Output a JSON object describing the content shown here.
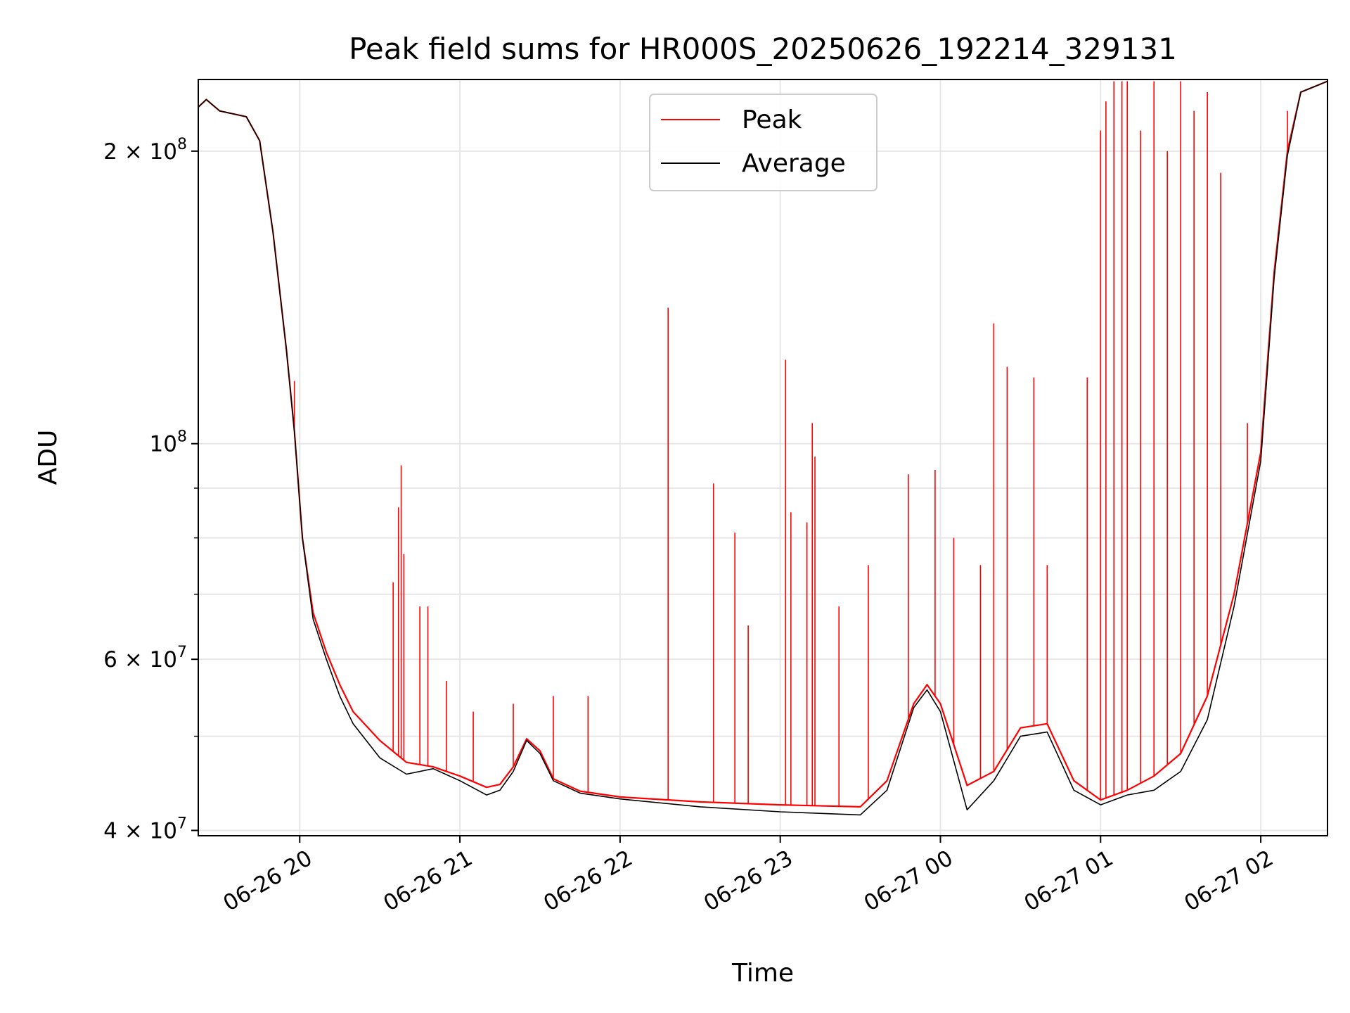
{
  "chart_data": {
    "type": "line",
    "title": "Peak field sums for HR000S_20250626_192214_329131",
    "xlabel": "Time",
    "ylabel": "ADU",
    "yscale": "log",
    "grid": true,
    "legend_position": "top-center",
    "x_range": [
      "2025-06-26 19:22",
      "2025-06-27 02:25"
    ],
    "ylim": [
      39500000,
      237000000
    ],
    "x_ticks": [
      "06-26 20",
      "06-26 21",
      "06-26 22",
      "06-26 23",
      "06-27 00",
      "06-27 01",
      "06-27 02"
    ],
    "y_ticks": [
      {
        "value": 40000000,
        "label_base": "4 × 10",
        "label_exp": "7"
      },
      {
        "value": 60000000,
        "label_base": "6 × 10",
        "label_exp": "7"
      },
      {
        "value": 100000000,
        "label_base": "10",
        "label_exp": "8"
      },
      {
        "value": 200000000,
        "label_base": "2 × 10",
        "label_exp": "8"
      }
    ],
    "series": [
      {
        "name": "Peak",
        "color": "#ff0000",
        "points": [
          [
            "2025-06-26 19:22",
            222000000
          ],
          [
            "2025-06-26 19:25",
            226000000
          ],
          [
            "2025-06-26 19:30",
            220000000
          ],
          [
            "2025-06-26 19:40",
            217000000
          ],
          [
            "2025-06-26 19:45",
            205000000
          ],
          [
            "2025-06-26 19:50",
            165000000
          ],
          [
            "2025-06-26 19:55",
            125000000
          ],
          [
            "2025-06-26 19:58",
            103000000
          ],
          [
            "2025-06-26 20:01",
            80000000
          ],
          [
            "2025-06-26 20:05",
            67000000
          ],
          [
            "2025-06-26 20:10",
            61000000
          ],
          [
            "2025-06-26 20:15",
            56500000
          ],
          [
            "2025-06-26 20:20",
            53000000
          ],
          [
            "2025-06-26 20:30",
            49500000
          ],
          [
            "2025-06-26 20:40",
            47000000
          ],
          [
            "2025-06-26 20:50",
            46500000
          ],
          [
            "2025-06-26 21:00",
            45500000
          ],
          [
            "2025-06-26 21:10",
            44300000
          ],
          [
            "2025-06-26 21:15",
            44600000
          ],
          [
            "2025-06-26 21:20",
            46500000
          ],
          [
            "2025-06-26 21:25",
            49700000
          ],
          [
            "2025-06-26 21:30",
            48300000
          ],
          [
            "2025-06-26 21:35",
            45200000
          ],
          [
            "2025-06-26 21:45",
            43900000
          ],
          [
            "2025-06-26 22:00",
            43300000
          ],
          [
            "2025-06-26 22:30",
            42800000
          ],
          [
            "2025-06-26 23:00",
            42500000
          ],
          [
            "2025-06-26 23:30",
            42300000
          ],
          [
            "2025-06-26 23:40",
            45000000
          ],
          [
            "2025-06-26 23:50",
            54000000
          ],
          [
            "2025-06-26 23:55",
            56500000
          ],
          [
            "2025-06-27 00:00",
            54000000
          ],
          [
            "2025-06-27 00:10",
            44500000
          ],
          [
            "2025-06-27 00:20",
            46000000
          ],
          [
            "2025-06-27 00:30",
            51000000
          ],
          [
            "2025-06-27 00:40",
            51500000
          ],
          [
            "2025-06-27 00:50",
            45000000
          ],
          [
            "2025-06-27 01:00",
            43000000
          ],
          [
            "2025-06-27 01:10",
            44000000
          ],
          [
            "2025-06-27 01:20",
            45500000
          ],
          [
            "2025-06-27 01:30",
            48000000
          ],
          [
            "2025-06-27 01:40",
            55000000
          ],
          [
            "2025-06-27 01:50",
            70000000
          ],
          [
            "2025-06-27 02:00",
            98000000
          ],
          [
            "2025-06-27 02:05",
            150000000
          ],
          [
            "2025-06-27 02:10",
            200000000
          ],
          [
            "2025-06-27 02:15",
            230000000
          ],
          [
            "2025-06-27 02:25",
            236000000
          ]
        ],
        "spikes": [
          [
            "2025-06-26 19:58",
            116000000
          ],
          [
            "2025-06-26 20:35",
            72000000
          ],
          [
            "2025-06-26 20:37",
            86000000
          ],
          [
            "2025-06-26 20:38",
            95000000
          ],
          [
            "2025-06-26 20:39",
            77000000
          ],
          [
            "2025-06-26 20:45",
            68000000
          ],
          [
            "2025-06-26 20:48",
            68000000
          ],
          [
            "2025-06-26 20:55",
            57000000
          ],
          [
            "2025-06-26 21:05",
            53000000
          ],
          [
            "2025-06-26 21:20",
            54000000
          ],
          [
            "2025-06-26 21:35",
            55000000
          ],
          [
            "2025-06-26 21:48",
            55000000
          ],
          [
            "2025-06-26 22:18",
            138000000
          ],
          [
            "2025-06-26 22:35",
            91000000
          ],
          [
            "2025-06-26 22:43",
            81000000
          ],
          [
            "2025-06-26 22:48",
            65000000
          ],
          [
            "2025-06-26 23:02",
            122000000
          ],
          [
            "2025-06-26 23:04",
            85000000
          ],
          [
            "2025-06-26 23:10",
            83000000
          ],
          [
            "2025-06-26 23:12",
            105000000
          ],
          [
            "2025-06-26 23:13",
            97000000
          ],
          [
            "2025-06-26 23:22",
            68000000
          ],
          [
            "2025-06-26 23:33",
            75000000
          ],
          [
            "2025-06-26 23:48",
            93000000
          ],
          [
            "2025-06-26 23:58",
            94000000
          ],
          [
            "2025-06-27 00:05",
            80000000
          ],
          [
            "2025-06-27 00:15",
            75000000
          ],
          [
            "2025-06-27 00:20",
            133000000
          ],
          [
            "2025-06-27 00:25",
            120000000
          ],
          [
            "2025-06-27 00:35",
            117000000
          ],
          [
            "2025-06-27 00:40",
            75000000
          ],
          [
            "2025-06-27 00:55",
            117000000
          ],
          [
            "2025-06-27 01:00",
            210000000
          ],
          [
            "2025-06-27 01:02",
            225000000
          ],
          [
            "2025-06-27 01:05",
            236000000
          ],
          [
            "2025-06-27 01:08",
            236000000
          ],
          [
            "2025-06-27 01:10",
            236000000
          ],
          [
            "2025-06-27 01:15",
            210000000
          ],
          [
            "2025-06-27 01:20",
            236000000
          ],
          [
            "2025-06-27 01:25",
            200000000
          ],
          [
            "2025-06-27 01:30",
            236000000
          ],
          [
            "2025-06-27 01:35",
            220000000
          ],
          [
            "2025-06-27 01:40",
            230000000
          ],
          [
            "2025-06-27 01:45",
            190000000
          ],
          [
            "2025-06-27 01:55",
            105000000
          ],
          [
            "2025-06-27 02:10",
            220000000
          ]
        ]
      },
      {
        "name": "Average",
        "color": "#000000",
        "points": [
          [
            "2025-06-26 19:22",
            222000000
          ],
          [
            "2025-06-26 19:25",
            226000000
          ],
          [
            "2025-06-26 19:30",
            220000000
          ],
          [
            "2025-06-26 19:40",
            217000000
          ],
          [
            "2025-06-26 19:45",
            205000000
          ],
          [
            "2025-06-26 19:50",
            165000000
          ],
          [
            "2025-06-26 19:55",
            125000000
          ],
          [
            "2025-06-26 19:58",
            103000000
          ],
          [
            "2025-06-26 20:01",
            80000000
          ],
          [
            "2025-06-26 20:05",
            66000000
          ],
          [
            "2025-06-26 20:10",
            60000000
          ],
          [
            "2025-06-26 20:15",
            55000000
          ],
          [
            "2025-06-26 20:20",
            51500000
          ],
          [
            "2025-06-26 20:30",
            47500000
          ],
          [
            "2025-06-26 20:40",
            45700000
          ],
          [
            "2025-06-26 20:50",
            46300000
          ],
          [
            "2025-06-26 21:00",
            45000000
          ],
          [
            "2025-06-26 21:10",
            43500000
          ],
          [
            "2025-06-26 21:15",
            44000000
          ],
          [
            "2025-06-26 21:20",
            46000000
          ],
          [
            "2025-06-26 21:25",
            49500000
          ],
          [
            "2025-06-26 21:30",
            48000000
          ],
          [
            "2025-06-26 21:35",
            45000000
          ],
          [
            "2025-06-26 21:45",
            43700000
          ],
          [
            "2025-06-26 22:00",
            43100000
          ],
          [
            "2025-06-26 22:30",
            42300000
          ],
          [
            "2025-06-26 23:00",
            41800000
          ],
          [
            "2025-06-26 23:30",
            41500000
          ],
          [
            "2025-06-26 23:40",
            44000000
          ],
          [
            "2025-06-26 23:50",
            53500000
          ],
          [
            "2025-06-26 23:55",
            55800000
          ],
          [
            "2025-06-27 00:00",
            53000000
          ],
          [
            "2025-06-27 00:10",
            42000000
          ],
          [
            "2025-06-27 00:20",
            45000000
          ],
          [
            "2025-06-27 00:30",
            50000000
          ],
          [
            "2025-06-27 00:40",
            50500000
          ],
          [
            "2025-06-27 00:50",
            44000000
          ],
          [
            "2025-06-27 01:00",
            42500000
          ],
          [
            "2025-06-27 01:10",
            43500000
          ],
          [
            "2025-06-27 01:20",
            44000000
          ],
          [
            "2025-06-27 01:30",
            46000000
          ],
          [
            "2025-06-27 01:40",
            52000000
          ],
          [
            "2025-06-27 01:50",
            68000000
          ],
          [
            "2025-06-27 02:00",
            96000000
          ],
          [
            "2025-06-27 02:05",
            148000000
          ],
          [
            "2025-06-27 02:10",
            198000000
          ],
          [
            "2025-06-27 02:15",
            230000000
          ],
          [
            "2025-06-27 02:25",
            236000000
          ]
        ]
      }
    ]
  }
}
